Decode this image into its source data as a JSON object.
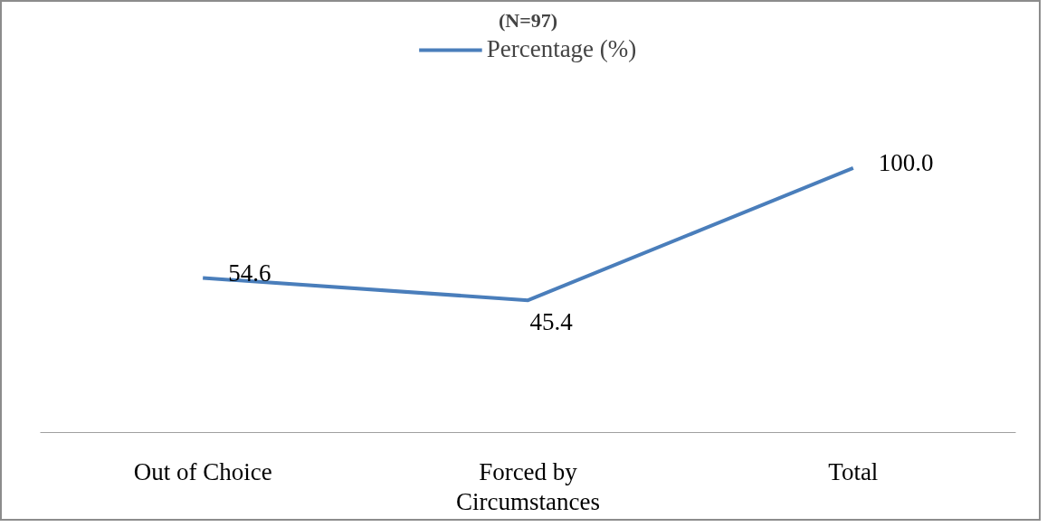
{
  "chart_data": {
    "type": "line",
    "title": "(N=97)",
    "categories": [
      "Out of Choice",
      "Forced by\nCircumstances",
      "Total"
    ],
    "series": [
      {
        "name": "Percentage (%)",
        "color": "#4a7ebb",
        "values": [
          54.6,
          45.4,
          100.0
        ],
        "value_labels": [
          "54.6",
          "45.4",
          "100.0"
        ]
      }
    ],
    "tick_labels": "x",
    "grid": false,
    "legend": "top",
    "marker": "none"
  }
}
